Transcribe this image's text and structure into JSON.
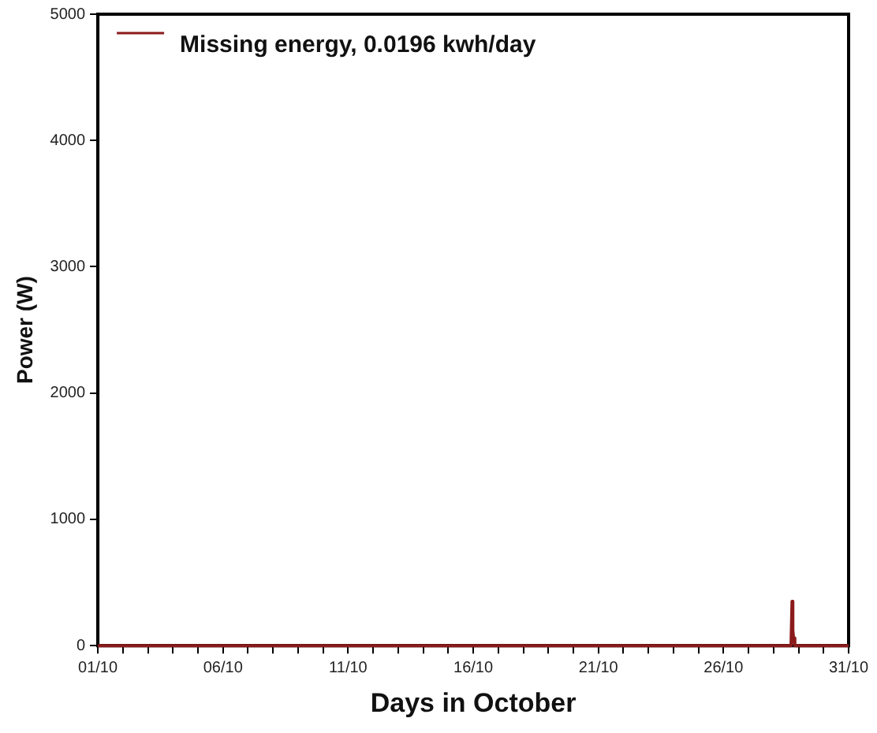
{
  "chart_data": {
    "type": "line",
    "xlabel": "Days in October",
    "ylabel": "Power (W)",
    "series": [
      {
        "name": "Missing energy, 0.0196 kwh/day",
        "color": "#8b1a1a",
        "x": [
          "--10-01",
          "--10-28T16:48",
          "--10-28T17:46",
          "--10-28T18:29",
          "--10-28T19:12",
          "--10-28T20:24",
          "--10-31"
        ],
        "values": [
          0,
          0,
          350,
          120,
          60,
          0,
          0
        ]
      }
    ],
    "xlim": [
      "--10-01",
      "--10-31"
    ],
    "xticks": [
      {
        "value": "--10-01",
        "label": "01/10"
      },
      {
        "value": "--10-02",
        "label": null
      },
      {
        "value": "--10-03",
        "label": null
      },
      {
        "value": "--10-04",
        "label": null
      },
      {
        "value": "--10-05",
        "label": null
      },
      {
        "value": "--10-06",
        "label": "06/10"
      },
      {
        "value": "--10-07",
        "label": null
      },
      {
        "value": "--10-08",
        "label": null
      },
      {
        "value": "--10-09",
        "label": null
      },
      {
        "value": "--10-10",
        "label": null
      },
      {
        "value": "--10-11",
        "label": "11/10"
      },
      {
        "value": "--10-12",
        "label": null
      },
      {
        "value": "--10-13",
        "label": null
      },
      {
        "value": "--10-14",
        "label": null
      },
      {
        "value": "--10-15",
        "label": null
      },
      {
        "value": "--10-16",
        "label": "16/10"
      },
      {
        "value": "--10-17",
        "label": null
      },
      {
        "value": "--10-18",
        "label": null
      },
      {
        "value": "--10-19",
        "label": null
      },
      {
        "value": "--10-20",
        "label": null
      },
      {
        "value": "--10-21",
        "label": "21/10"
      },
      {
        "value": "--10-22",
        "label": null
      },
      {
        "value": "--10-23",
        "label": null
      },
      {
        "value": "--10-24",
        "label": null
      },
      {
        "value": "--10-25",
        "label": null
      },
      {
        "value": "--10-26",
        "label": "26/10"
      },
      {
        "value": "--10-27",
        "label": null
      },
      {
        "value": "--10-28",
        "label": null
      },
      {
        "value": "--10-29",
        "label": null
      },
      {
        "value": "--10-30",
        "label": null
      },
      {
        "value": "--10-31",
        "label": "31/10"
      }
    ],
    "ylim": [
      0,
      5000
    ],
    "yticks": [
      0,
      1000,
      2000,
      3000,
      4000,
      5000
    ],
    "grid": false,
    "legend": "top left",
    "marker": "none",
    "line_style": "solid"
  }
}
